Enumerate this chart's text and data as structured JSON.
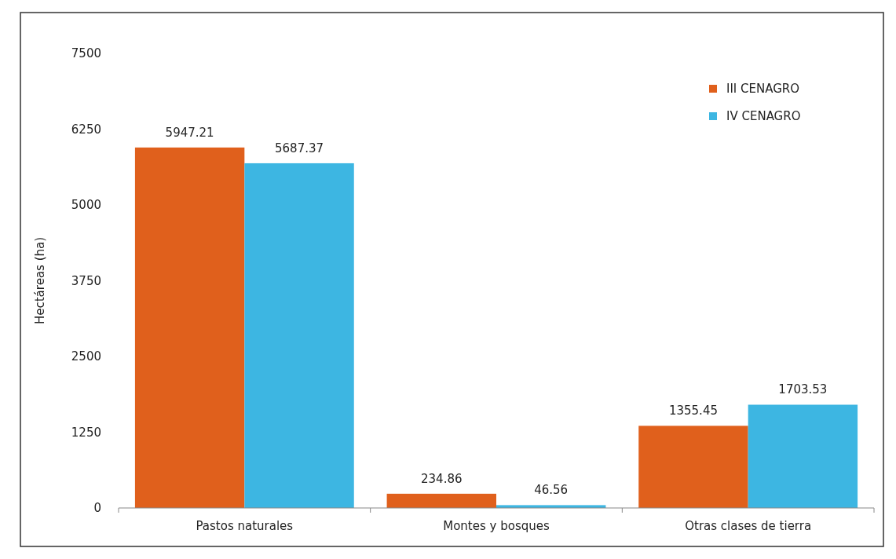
{
  "chart_data": {
    "type": "bar",
    "ylabel": "Hectáreas (ha)",
    "categories": [
      "Pastos naturales",
      "Montes y bosques",
      "Otras clases de tierra"
    ],
    "series": [
      {
        "name": "III CENAGRO",
        "color": "#e0601c",
        "values": [
          5947.21,
          234.86,
          1355.45
        ]
      },
      {
        "name": "IV CENAGRO",
        "color": "#3db6e2",
        "values": [
          5687.37,
          46.56,
          1703.53
        ]
      }
    ],
    "ylim": [
      0,
      7500
    ],
    "yticks": [
      0,
      1250,
      2500,
      3750,
      5000,
      6250,
      7500
    ],
    "data_labels": true,
    "legend": "top right",
    "grid": false
  }
}
